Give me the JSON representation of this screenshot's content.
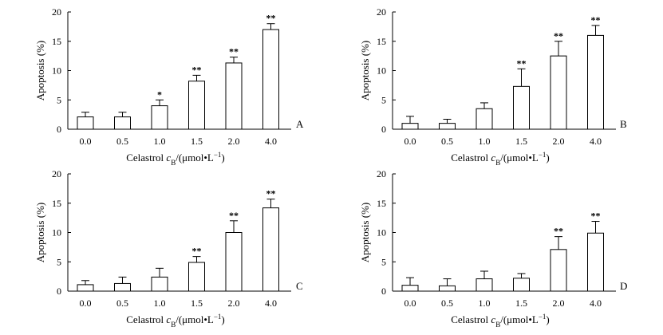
{
  "chart_data": [
    {
      "type": "bar",
      "panel_label": "A",
      "categories": [
        "0.0",
        "0.5",
        "1.0",
        "1.5",
        "2.0",
        "4.0"
      ],
      "values": [
        2.1,
        2.1,
        4.0,
        8.2,
        11.3,
        17.0
      ],
      "errors": [
        0.8,
        0.8,
        1.0,
        1.0,
        1.0,
        1.0
      ],
      "significance": [
        "",
        "",
        "*",
        "**",
        "**",
        "**"
      ],
      "ylabel": "Apoptosis (%)",
      "xlabel_main": "Celastrol ",
      "xlabel_var": "c",
      "xlabel_sub": "B",
      "xlabel_unit": "/(μmol•L",
      "xlabel_sup": "−1",
      "xlabel_end": ")",
      "ylim": [
        0,
        20
      ],
      "yticks": [
        "0",
        "5",
        "10",
        "15",
        "20"
      ]
    },
    {
      "type": "bar",
      "panel_label": "B",
      "categories": [
        "0.0",
        "0.5",
        "1.0",
        "1.5",
        "2.0",
        "4.0"
      ],
      "values": [
        1.0,
        1.0,
        3.5,
        7.3,
        12.5,
        16.0
      ],
      "errors": [
        1.2,
        0.7,
        1.0,
        3.0,
        2.5,
        1.7
      ],
      "significance": [
        "",
        "",
        "",
        "**",
        "**",
        "**"
      ],
      "ylabel": "Apoptosis (%)",
      "xlabel_main": "Celastrol ",
      "xlabel_var": "c",
      "xlabel_sub": "B",
      "xlabel_unit": "/(μmol•L",
      "xlabel_sup": "−1",
      "xlabel_end": ")",
      "ylim": [
        0,
        20
      ],
      "yticks": [
        "0",
        "5",
        "10",
        "15",
        "20"
      ]
    },
    {
      "type": "bar",
      "panel_label": "C",
      "categories": [
        "0.0",
        "0.5",
        "1.0",
        "1.5",
        "2.0",
        "4.0"
      ],
      "values": [
        1.1,
        1.3,
        2.4,
        4.9,
        10.0,
        14.2
      ],
      "errors": [
        0.7,
        1.1,
        1.5,
        1.0,
        2.0,
        1.5
      ],
      "significance": [
        "",
        "",
        "",
        "**",
        "**",
        "**"
      ],
      "ylabel": "Apoptosis (%)",
      "xlabel_main": "Celastrol ",
      "xlabel_var": "c",
      "xlabel_sub": "B",
      "xlabel_unit": "/(μmol•L",
      "xlabel_sup": "−1",
      "xlabel_end": ")",
      "ylim": [
        0,
        20
      ],
      "yticks": [
        "0",
        "5",
        "10",
        "15",
        "20"
      ]
    },
    {
      "type": "bar",
      "panel_label": "D",
      "categories": [
        "0.0",
        "0.5",
        "1.0",
        "1.5",
        "2.0",
        "4.0"
      ],
      "values": [
        1.0,
        0.9,
        2.1,
        2.2,
        7.1,
        9.9
      ],
      "errors": [
        1.3,
        1.2,
        1.3,
        0.8,
        2.2,
        2.0
      ],
      "significance": [
        "",
        "",
        "",
        "",
        "**",
        "**"
      ],
      "ylabel": "Apoptosis (%)",
      "xlabel_main": "Celastrol ",
      "xlabel_var": "c",
      "xlabel_sub": "B",
      "xlabel_unit": "/(μmol•L",
      "xlabel_sup": "−1",
      "xlabel_end": ")",
      "ylim": [
        0,
        20
      ],
      "yticks": [
        "0",
        "5",
        "10",
        "15",
        "20"
      ]
    }
  ]
}
